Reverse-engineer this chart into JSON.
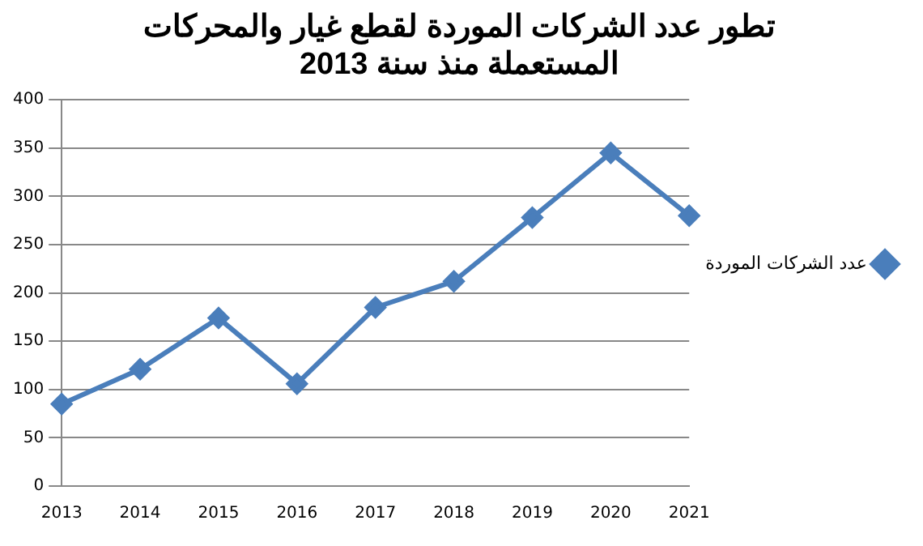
{
  "chart_data": {
    "type": "line",
    "title": "تطور عدد الشركات الموردة لقطع غيار والمحركات\nالمستعملة منذ سنة 2013",
    "categories": [
      "2013",
      "2014",
      "2015",
      "2016",
      "2017",
      "2018",
      "2019",
      "2020",
      "2021"
    ],
    "series": [
      {
        "name": "عدد الشركات الموردة",
        "color": "#4a7ebb",
        "values": [
          85,
          121,
          174,
          106,
          185,
          212,
          278,
          345,
          280
        ]
      }
    ],
    "ylim": [
      0,
      400
    ],
    "yticks": [
      0,
      50,
      100,
      150,
      200,
      250,
      300,
      350,
      400
    ],
    "grid": "y",
    "legend": "right",
    "marker": "diamond",
    "line_style": "solid"
  }
}
